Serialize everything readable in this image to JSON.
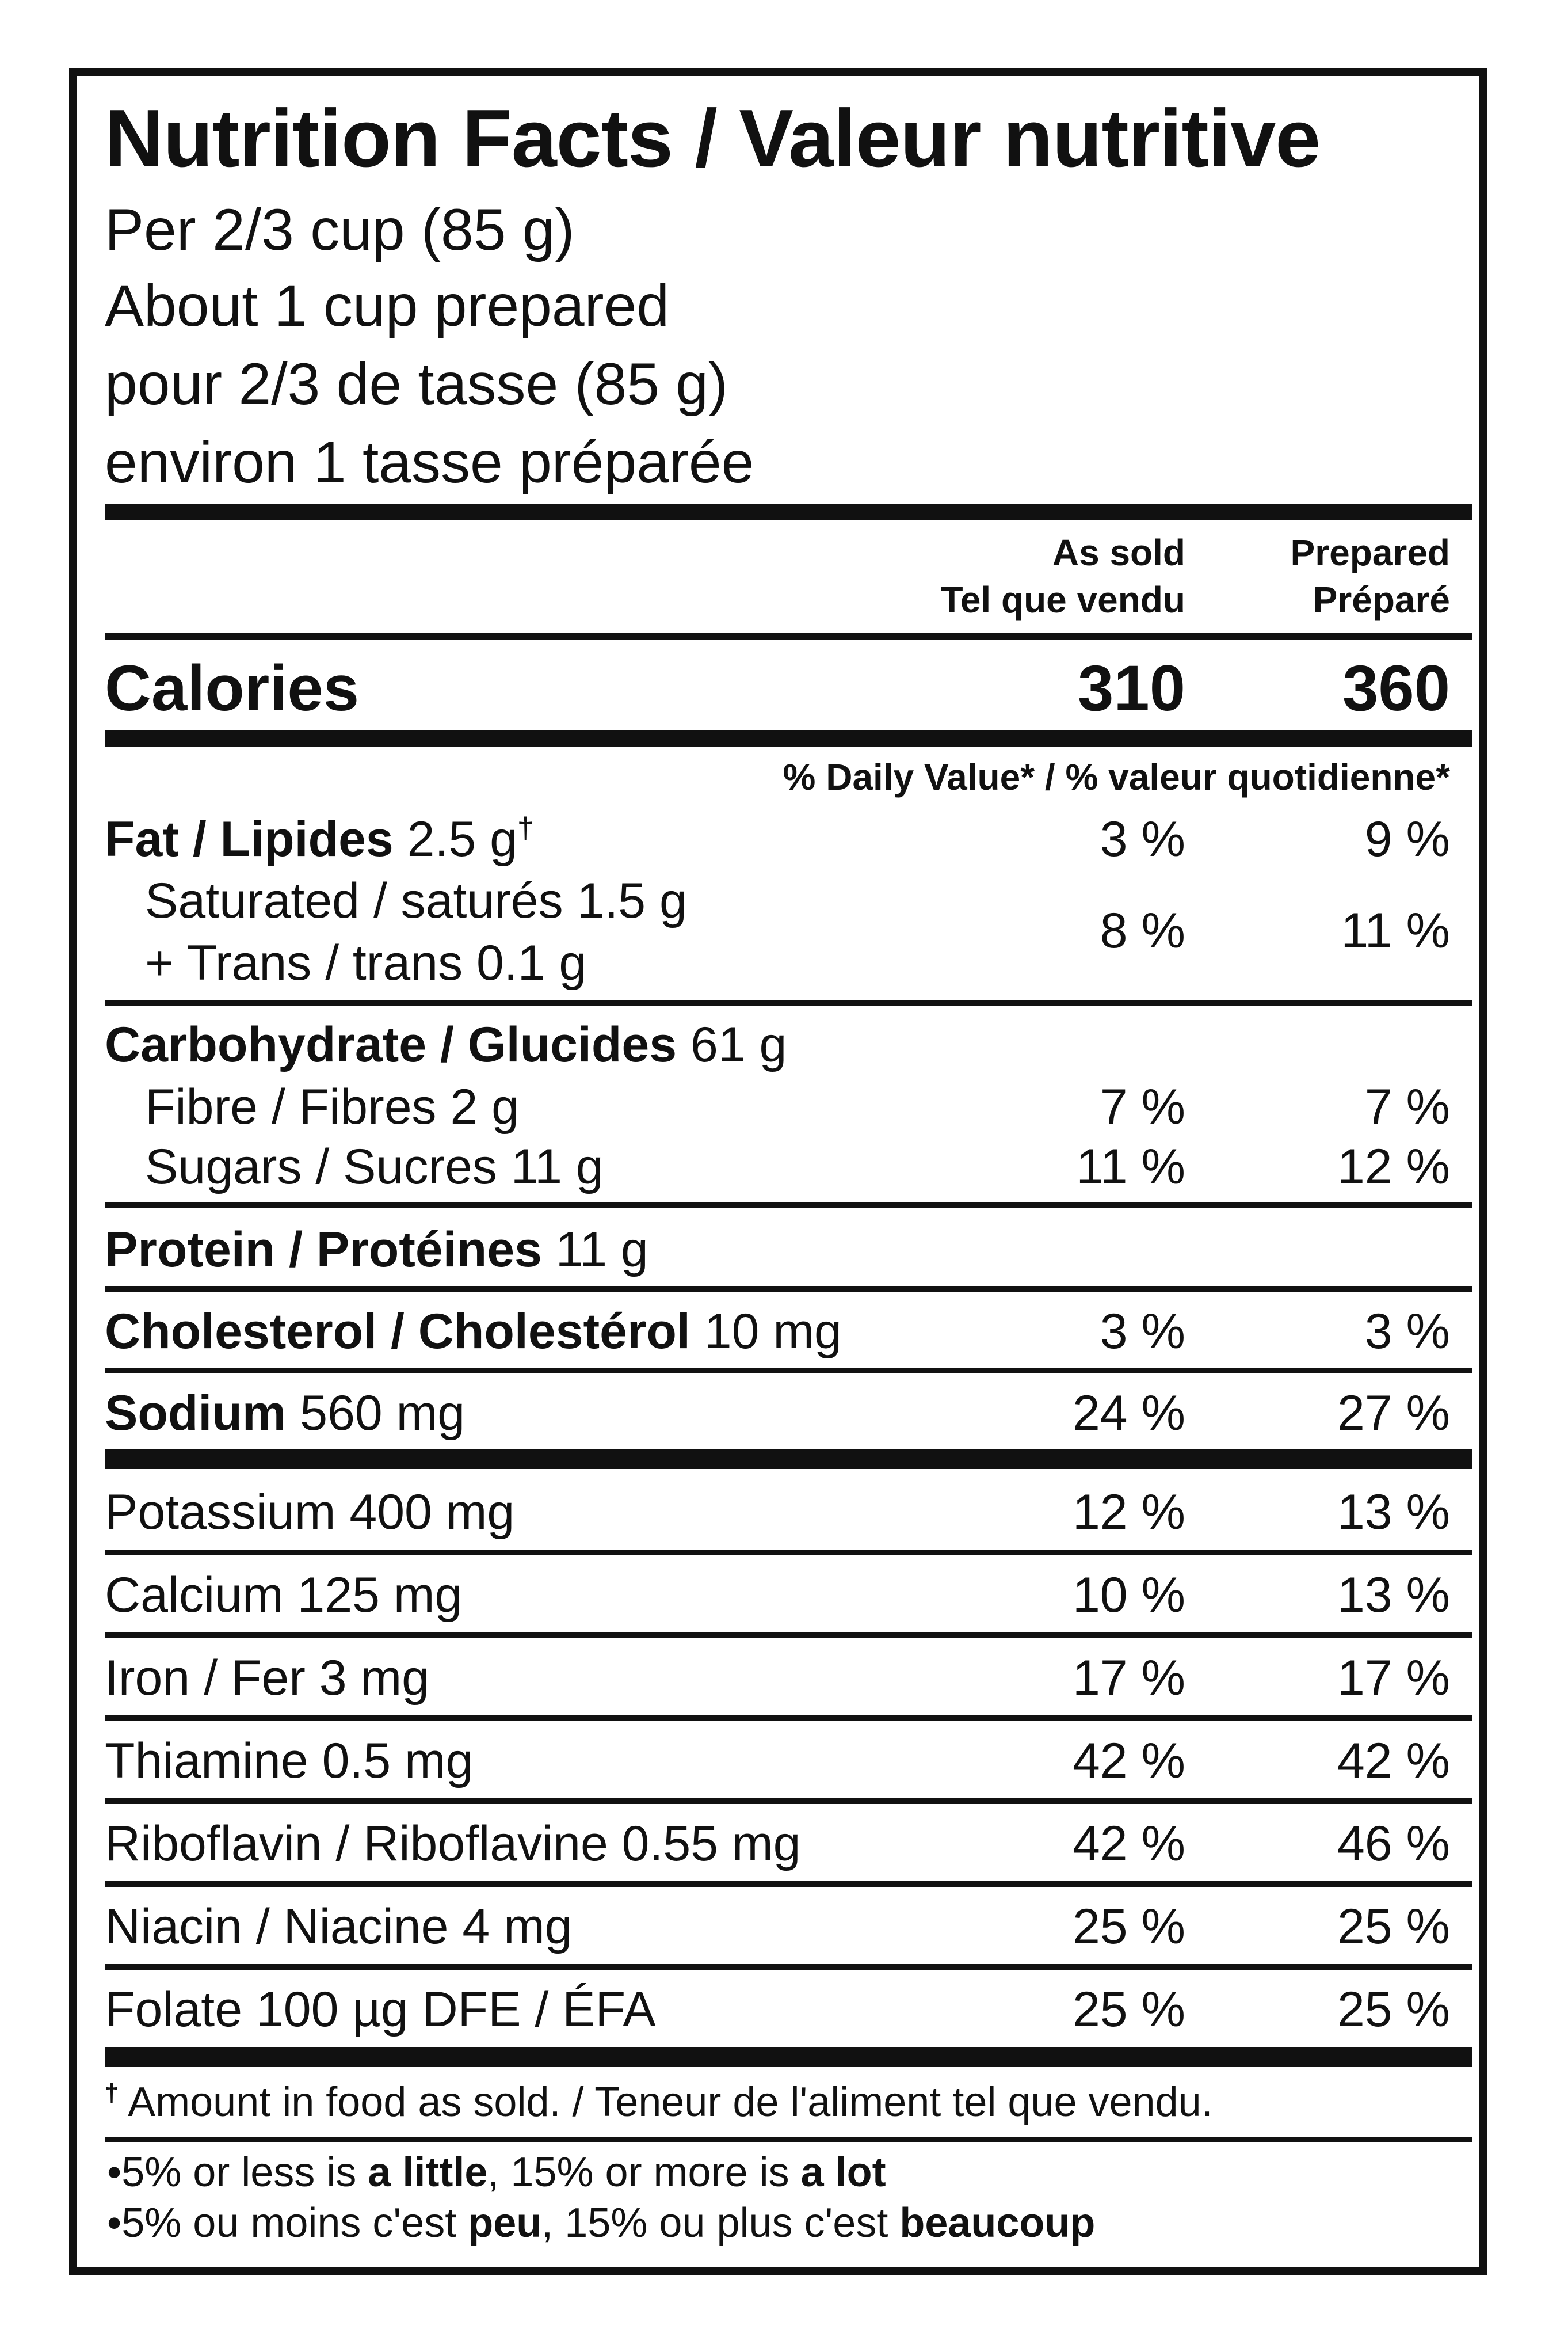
{
  "header": {
    "title": "Nutrition Facts / Valeur nutritive",
    "serving_lines": [
      "Per 2/3 cup (85 g)",
      "About 1 cup prepared",
      "pour 2/3 de tasse (85 g)",
      "environ 1 tasse préparée"
    ]
  },
  "columns": {
    "as_sold": [
      "As sold",
      "Tel que vendu"
    ],
    "prepared": [
      "Prepared",
      "Préparé"
    ]
  },
  "calories": {
    "label": "Calories",
    "as_sold": "310",
    "prepared": "360"
  },
  "daily_value_header": "% Daily Value* / % valeur quotidienne*",
  "fat": {
    "name": "Fat / Lipides",
    "amount": "2.5 g",
    "mark": "†",
    "as_sold": "3 %",
    "prepared": "9 %"
  },
  "saturated": {
    "line1": "Saturated / saturés 1.5 g",
    "line2": "+ Trans / trans 0.1 g",
    "as_sold": "8 %",
    "prepared": "11 %"
  },
  "carbohydrate": {
    "name": "Carbohydrate / Glucides",
    "amount": "61 g"
  },
  "fibre": {
    "label": "Fibre / Fibres 2 g",
    "as_sold": "7 %",
    "prepared": "7 %"
  },
  "sugars": {
    "label": "Sugars / Sucres 11 g",
    "as_sold": "11 %",
    "prepared": "12 %"
  },
  "protein": {
    "name": "Protein / Protéines",
    "amount": "11 g"
  },
  "cholesterol": {
    "name": "Cholesterol / Cholestérol",
    "amount": "10 mg",
    "as_sold": "3 %",
    "prepared": "3 %"
  },
  "sodium": {
    "name": "Sodium",
    "amount": "560 mg",
    "as_sold": "24 %",
    "prepared": "27 %"
  },
  "minerals": [
    {
      "label": "Potassium 400 mg",
      "as_sold": "12 %",
      "prepared": "13 %"
    },
    {
      "label": "Calcium 125 mg",
      "as_sold": "10 %",
      "prepared": "13 %"
    },
    {
      "label": "Iron / Fer 3 mg",
      "as_sold": "17 %",
      "prepared": "17 %"
    },
    {
      "label": "Thiamine 0.5 mg",
      "as_sold": "42 %",
      "prepared": "42 %"
    },
    {
      "label": "Riboflavin / Riboflavine 0.55 mg",
      "as_sold": "42 %",
      "prepared": "46 %"
    },
    {
      "label": "Niacin / Niacine 4 mg",
      "as_sold": "25 %",
      "prepared": "25 %"
    },
    {
      "label": "Folate 100 µg DFE / ÉFA",
      "as_sold": "25 %",
      "prepared": "25 %"
    }
  ],
  "footnote": {
    "mark": "†",
    "text": "Amount in food as sold. / Teneur de l'aliment tel que vendu."
  },
  "footer": {
    "line_en": {
      "pre": "•5% or less is ",
      "b1": "a little",
      "mid": ", 15% or more is ",
      "b2": "a lot"
    },
    "line_fr": {
      "pre": "•5% ou moins c'est ",
      "b1": "peu",
      "mid": ", 15% ou plus c'est ",
      "b2": "beaucoup"
    }
  }
}
